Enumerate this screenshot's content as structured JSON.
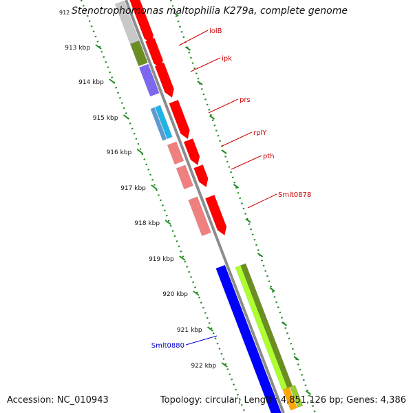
{
  "map": {
    "title": "Stenotrophomonas maltophilia K279a, complete genome",
    "title_tick": "912",
    "accession": "Accession: NC_010943",
    "topology": "Topology: circular; Length: 4,851,126 bp; Genes: 4,386",
    "ruler_labels": [
      "913 kbp",
      "914 kbp",
      "915 kbp",
      "916 kbp",
      "917 kbp",
      "918 kbp",
      "919 kbp",
      "920 kbp",
      "921 kbp",
      "922 kbp"
    ],
    "colors": {
      "backbone": "#8c8c8c",
      "red_gene": "#ff0000",
      "pink_gene": "#f08080",
      "olive_gene": "#6b8e23",
      "purple_gene": "#7b68ee",
      "cyan_gene": "#1eb4e6",
      "blue_gene": "#0000ff",
      "lime_gene": "#adff2f",
      "green_dots": "#228b22",
      "label_red": "#cc0000",
      "label_blue": "#0000cc"
    },
    "gene_labels": [
      {
        "text": "lolB",
        "color": "red"
      },
      {
        "text": "ipk",
        "color": "red"
      },
      {
        "text": "prs",
        "color": "red"
      },
      {
        "text": "rplY",
        "color": "red"
      },
      {
        "text": "pth",
        "color": "red"
      },
      {
        "text": "Smlt0878",
        "color": "red"
      },
      {
        "text": "Smlt0880",
        "color": "blue"
      }
    ]
  }
}
